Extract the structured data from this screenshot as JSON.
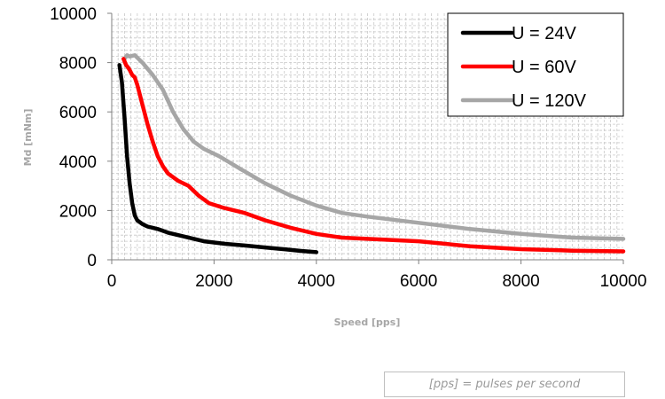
{
  "chart_data": {
    "type": "line",
    "title": "",
    "xlabel": "Speed [pps]",
    "ylabel": "Md [mNm]",
    "xlim": [
      0,
      10000
    ],
    "ylim": [
      0,
      10000
    ],
    "xticks": [
      0,
      2000,
      4000,
      6000,
      8000,
      10000
    ],
    "yticks": [
      0,
      2000,
      4000,
      6000,
      8000,
      10000
    ],
    "xtick_labels": [
      "0",
      "2000",
      "4000",
      "6000",
      "8000",
      "10000"
    ],
    "ytick_labels": [
      "0",
      "2000",
      "4000",
      "6000",
      "8000",
      "10000"
    ],
    "grid": true,
    "legend_position": "top-right",
    "series": [
      {
        "name": "U = 24V",
        "color": "#000000",
        "points": [
          [
            150,
            7900
          ],
          [
            200,
            7200
          ],
          [
            250,
            5800
          ],
          [
            300,
            4200
          ],
          [
            350,
            3100
          ],
          [
            400,
            2300
          ],
          [
            450,
            1800
          ],
          [
            500,
            1600
          ],
          [
            600,
            1450
          ],
          [
            700,
            1350
          ],
          [
            900,
            1250
          ],
          [
            1100,
            1100
          ],
          [
            1400,
            950
          ],
          [
            1800,
            750
          ],
          [
            2200,
            650
          ],
          [
            2600,
            580
          ],
          [
            3000,
            500
          ],
          [
            3400,
            420
          ],
          [
            3700,
            360
          ],
          [
            4000,
            310
          ]
        ]
      },
      {
        "name": "U = 60V",
        "color": "#ff0000",
        "points": [
          [
            230,
            8150
          ],
          [
            280,
            7900
          ],
          [
            320,
            7800
          ],
          [
            350,
            7700
          ],
          [
            400,
            7500
          ],
          [
            450,
            7400
          ],
          [
            500,
            7100
          ],
          [
            600,
            6300
          ],
          [
            700,
            5500
          ],
          [
            800,
            4800
          ],
          [
            900,
            4200
          ],
          [
            1000,
            3800
          ],
          [
            1100,
            3500
          ],
          [
            1300,
            3200
          ],
          [
            1500,
            3000
          ],
          [
            1700,
            2600
          ],
          [
            1900,
            2300
          ],
          [
            2200,
            2100
          ],
          [
            2600,
            1900
          ],
          [
            3000,
            1600
          ],
          [
            3500,
            1300
          ],
          [
            4000,
            1050
          ],
          [
            4500,
            900
          ],
          [
            5000,
            850
          ],
          [
            6000,
            750
          ],
          [
            7000,
            550
          ],
          [
            8000,
            430
          ],
          [
            9000,
            370
          ],
          [
            10000,
            340
          ]
        ]
      },
      {
        "name": "U = 120V",
        "color": "#a6a6a6",
        "points": [
          [
            250,
            8150
          ],
          [
            300,
            8300
          ],
          [
            350,
            8250
          ],
          [
            450,
            8300
          ],
          [
            500,
            8200
          ],
          [
            600,
            8000
          ],
          [
            800,
            7500
          ],
          [
            1000,
            6900
          ],
          [
            1200,
            6000
          ],
          [
            1400,
            5300
          ],
          [
            1600,
            4800
          ],
          [
            1800,
            4500
          ],
          [
            2100,
            4200
          ],
          [
            2500,
            3700
          ],
          [
            3000,
            3100
          ],
          [
            3500,
            2600
          ],
          [
            4000,
            2200
          ],
          [
            4500,
            1900
          ],
          [
            5000,
            1750
          ],
          [
            6000,
            1500
          ],
          [
            7000,
            1250
          ],
          [
            8000,
            1050
          ],
          [
            9000,
            900
          ],
          [
            10000,
            850
          ]
        ]
      }
    ]
  },
  "note": "[pps] = pulses per second"
}
